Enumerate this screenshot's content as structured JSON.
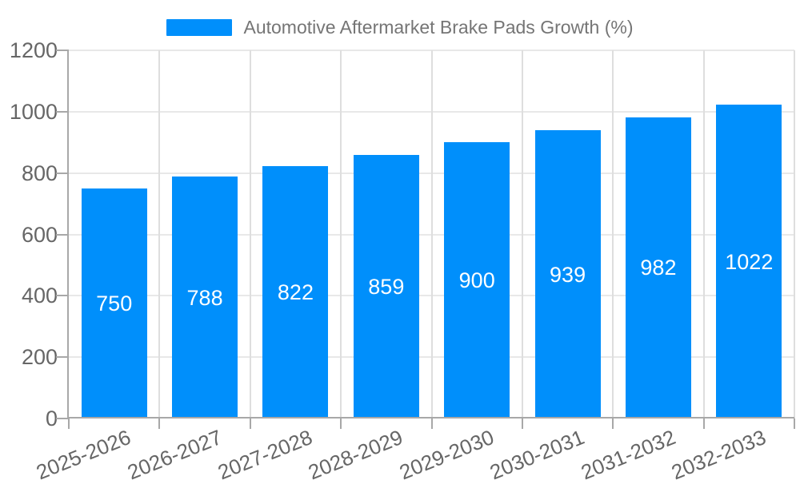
{
  "chart_data": {
    "type": "bar",
    "title": "",
    "legend": "Automotive Aftermarket Brake Pads Growth (%)",
    "legend_position": "top-center",
    "categories": [
      "2025-2026",
      "2026-2027",
      "2027-2028",
      "2028-2029",
      "2029-2030",
      "2030-2031",
      "2031-2032",
      "2032-2033"
    ],
    "series": [
      {
        "name": "Automotive Aftermarket Brake Pads Growth (%)",
        "values": [
          750,
          788,
          822,
          859,
          900,
          939,
          982,
          1022
        ]
      }
    ],
    "xlabel": "",
    "ylabel": "",
    "ylim": [
      0,
      1200
    ],
    "y_ticks": [
      0,
      200,
      400,
      600,
      800,
      1000,
      1200
    ],
    "grid": "on",
    "bar_value_labels_visible": true,
    "x_label_rotation_deg": -22,
    "colors": {
      "bar": "#008FFB",
      "bar_value_text": "#FFFFFF",
      "grid_horizontal": "#E8E8E8",
      "grid_vertical": "#DEDEDE",
      "axis_line": "#A8A8A8",
      "tick_label_text": "#666666",
      "legend_text": "#757575",
      "background": "#FFFFFF"
    }
  }
}
